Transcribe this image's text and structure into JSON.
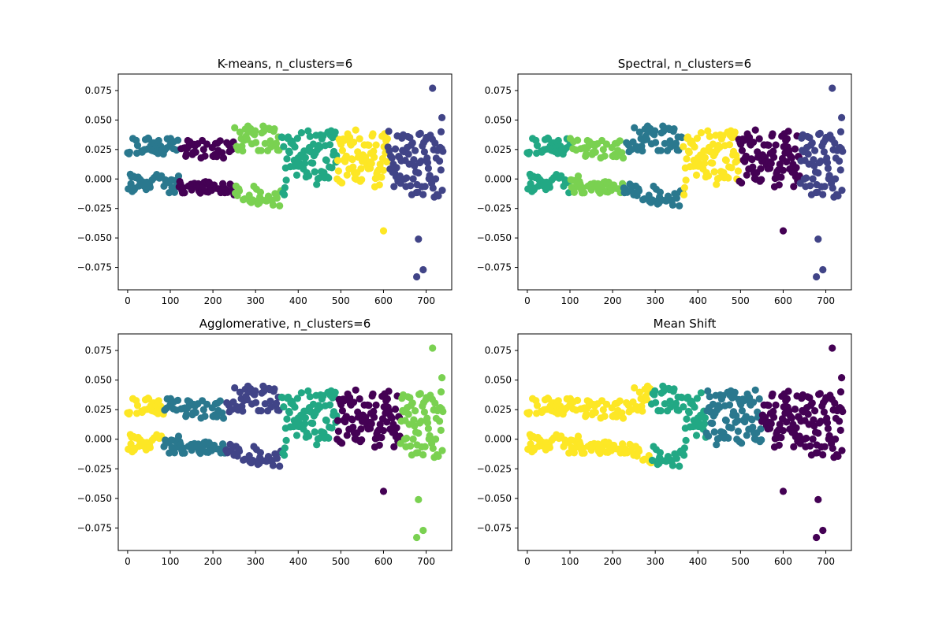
{
  "chart_data": [
    {
      "type": "scatter",
      "title": "K-means, n_clusters=6",
      "xlabel": "",
      "ylabel": "",
      "xlim": [
        -22,
        760
      ],
      "ylim": [
        -0.094,
        0.089
      ],
      "xticks": [
        "0",
        "100",
        "200",
        "300",
        "400",
        "500",
        "600",
        "700"
      ],
      "yticks": [
        "0.075",
        "0.050",
        "0.025",
        "0.000",
        "−0.025",
        "−0.050",
        "−0.075"
      ],
      "grid": false,
      "colors": [
        "#440154",
        "#414487",
        "#2a788e",
        "#22a884",
        "#7ad151",
        "#fde725"
      ],
      "segments": [
        {
          "x0": 0,
          "x1": 120,
          "color": 2
        },
        {
          "x0": 120,
          "x1": 250,
          "color": 0
        },
        {
          "x0": 250,
          "x1": 360,
          "color": 4
        },
        {
          "x0": 360,
          "x1": 490,
          "color": 3
        },
        {
          "x0": 490,
          "x1": 610,
          "color": 5
        },
        {
          "x0": 610,
          "x1": 740,
          "color": 1
        }
      ],
      "extra_points": [
        {
          "x": 715,
          "y": 0.077,
          "color": 1
        },
        {
          "x": 737,
          "y": 0.052,
          "color": 1
        },
        {
          "x": 735,
          "y": 0.04,
          "color": 1
        },
        {
          "x": 682,
          "y": -0.051,
          "color": 1
        },
        {
          "x": 693,
          "y": -0.077,
          "color": 1
        },
        {
          "x": 678,
          "y": -0.083,
          "color": 1
        },
        {
          "x": 600,
          "y": -0.044,
          "color": 5
        }
      ]
    },
    {
      "type": "scatter",
      "title": "Spectral, n_clusters=6",
      "xlabel": "",
      "ylabel": "",
      "xlim": [
        -22,
        760
      ],
      "ylim": [
        -0.094,
        0.089
      ],
      "xticks": [
        "0",
        "100",
        "200",
        "300",
        "400",
        "500",
        "600",
        "700"
      ],
      "yticks": [
        "0.075",
        "0.050",
        "0.025",
        "0.000",
        "−0.025",
        "−0.050",
        "−0.075"
      ],
      "grid": false,
      "colors": [
        "#440154",
        "#414487",
        "#2a788e",
        "#22a884",
        "#7ad151",
        "#fde725"
      ],
      "segments": [
        {
          "x0": 0,
          "x1": 100,
          "color": 3
        },
        {
          "x0": 100,
          "x1": 225,
          "color": 4
        },
        {
          "x0": 225,
          "x1": 365,
          "color": 2
        },
        {
          "x0": 365,
          "x1": 495,
          "color": 5
        },
        {
          "x0": 495,
          "x1": 640,
          "color": 0
        },
        {
          "x0": 640,
          "x1": 740,
          "color": 1
        }
      ],
      "extra_points": [
        {
          "x": 715,
          "y": 0.077,
          "color": 1
        },
        {
          "x": 737,
          "y": 0.052,
          "color": 1
        },
        {
          "x": 735,
          "y": 0.04,
          "color": 1
        },
        {
          "x": 682,
          "y": -0.051,
          "color": 1
        },
        {
          "x": 693,
          "y": -0.077,
          "color": 1
        },
        {
          "x": 678,
          "y": -0.083,
          "color": 1
        },
        {
          "x": 600,
          "y": -0.044,
          "color": 0
        }
      ]
    },
    {
      "type": "scatter",
      "title": "Agglomerative, n_clusters=6",
      "xlabel": "",
      "ylabel": "",
      "xlim": [
        -22,
        760
      ],
      "ylim": [
        -0.094,
        0.089
      ],
      "xticks": [
        "0",
        "100",
        "200",
        "300",
        "400",
        "500",
        "600",
        "700"
      ],
      "yticks": [
        "0.075",
        "0.050",
        "0.025",
        "0.000",
        "−0.025",
        "−0.050",
        "−0.075"
      ],
      "grid": false,
      "colors": [
        "#440154",
        "#414487",
        "#2a788e",
        "#22a884",
        "#7ad151",
        "#fde725"
      ],
      "segments": [
        {
          "x0": 0,
          "x1": 85,
          "color": 5
        },
        {
          "x0": 85,
          "x1": 230,
          "color": 2
        },
        {
          "x0": 230,
          "x1": 360,
          "color": 1
        },
        {
          "x0": 360,
          "x1": 490,
          "color": 3
        },
        {
          "x0": 490,
          "x1": 640,
          "color": 0
        },
        {
          "x0": 640,
          "x1": 740,
          "color": 4
        }
      ],
      "extra_points": [
        {
          "x": 715,
          "y": 0.077,
          "color": 4
        },
        {
          "x": 737,
          "y": 0.052,
          "color": 4
        },
        {
          "x": 735,
          "y": 0.04,
          "color": 4
        },
        {
          "x": 682,
          "y": -0.051,
          "color": 4
        },
        {
          "x": 693,
          "y": -0.077,
          "color": 4
        },
        {
          "x": 678,
          "y": -0.083,
          "color": 4
        },
        {
          "x": 600,
          "y": -0.044,
          "color": 0
        }
      ]
    },
    {
      "type": "scatter",
      "title": "Mean Shift",
      "xlabel": "",
      "ylabel": "",
      "xlim": [
        -22,
        760
      ],
      "ylim": [
        -0.094,
        0.089
      ],
      "xticks": [
        "0",
        "100",
        "200",
        "300",
        "400",
        "500",
        "600",
        "700"
      ],
      "yticks": [
        "0.075",
        "0.050",
        "0.025",
        "0.000",
        "−0.025",
        "−0.050",
        "−0.075"
      ],
      "grid": false,
      "colors": [
        "#440154",
        "#414487",
        "#2a788e",
        "#22a884",
        "#7ad151",
        "#fde725"
      ],
      "segments": [
        {
          "x0": 0,
          "x1": 290,
          "color": 5
        },
        {
          "x0": 290,
          "x1": 420,
          "color": 3
        },
        {
          "x0": 420,
          "x1": 550,
          "color": 2
        },
        {
          "x0": 550,
          "x1": 740,
          "color": 0
        }
      ],
      "extra_points": [
        {
          "x": 715,
          "y": 0.077,
          "color": 0
        },
        {
          "x": 737,
          "y": 0.052,
          "color": 0
        },
        {
          "x": 735,
          "y": 0.04,
          "color": 0
        },
        {
          "x": 682,
          "y": -0.051,
          "color": 0
        },
        {
          "x": 693,
          "y": -0.077,
          "color": 0
        },
        {
          "x": 678,
          "y": -0.083,
          "color": 0
        },
        {
          "x": 600,
          "y": -0.044,
          "color": 0
        }
      ]
    }
  ]
}
